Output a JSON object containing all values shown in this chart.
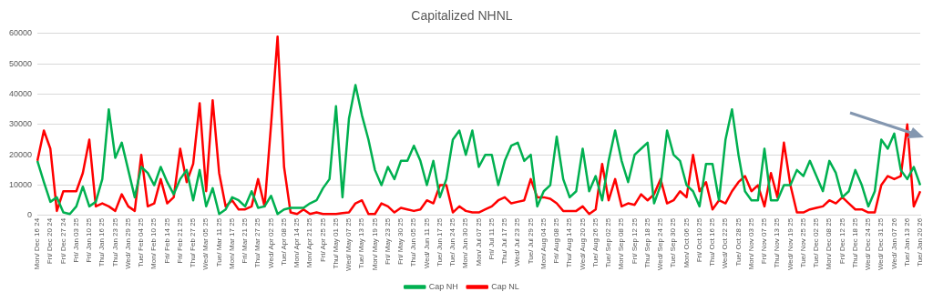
{
  "chart_data": {
    "type": "line",
    "title": "Capitalized NHNL",
    "categories": [
      "Mon/ Dec 16 24",
      null,
      "Fri/ Dec 20 24",
      null,
      "Fri/ Dec 27 24",
      null,
      "Fri/ Jan 03 25",
      null,
      "Fri/ Jan 10 25",
      null,
      "Thu/ Jan 16 25",
      null,
      "Thu/ Jan 23 25",
      null,
      "Wed/ Jan 29 25",
      null,
      "Tue/ Feb 04 25",
      null,
      "Mon/ Feb 10 25",
      null,
      "Fri/ Feb 14 25",
      null,
      "Fri/ Feb 21 25",
      null,
      "Thu/ Feb 27 25",
      null,
      "Wed/ Mar 05 25",
      null,
      "Tue/ Mar 11 25",
      null,
      "Mon/ Mar 17 25",
      null,
      "Fri/ Mar 21 25",
      null,
      "Thu/ Mar 27 25",
      null,
      "Wed/ Apr 02 25",
      null,
      "Tue/ Apr 08 25",
      null,
      "Mon/ Apr 14 25",
      null,
      "Mon/ Apr 21 25",
      null,
      "Fri/ Apr 25 25",
      null,
      "Thu/ May 01 25",
      null,
      "Wed/ May 07 25",
      null,
      "Tue/ May 13 25",
      null,
      "Mon/ May 19 25",
      null,
      "Fri/ May 23 25",
      null,
      "Fri/ May 30 25",
      null,
      "Thu/ Jun 05 25",
      null,
      "Wed/ Jun 11 25",
      null,
      "Tue/ Jun 17 25",
      null,
      "Tue/ Jun 24 25",
      null,
      "Mon/ Jun 30 25",
      null,
      "Mon/ Jul 07 25",
      null,
      "Fri/ Jul 11 25",
      null,
      "Thu/ Jul 17 25",
      null,
      "Wed/ Jul 23 25",
      null,
      "Tue/ Jul 29 25",
      null,
      "Mon/ Aug 04 25",
      null,
      "Fri/ Aug 08 25",
      null,
      "Thu/ Aug 14 25",
      null,
      "Wed/ Aug 20 25",
      null,
      "Tue/ Aug 26 25",
      null,
      "Tue/ Sep 02 25",
      null,
      "Mon/ Sep 08 25",
      null,
      "Fri/ Sep 12 25",
      null,
      "Thu/ Sep 18 25",
      null,
      "Wed/ Sep 24 25",
      null,
      "Tue/ Sep 30 25",
      null,
      "Mon/ Oct 06 25",
      null,
      "Fri/ Oct 10 25",
      null,
      "Thu/ Oct 16 25",
      null,
      "Wed/ Oct 22 25",
      null,
      "Tue/ Oct 28 25",
      null,
      "Mon/ Nov 03 25",
      null,
      "Fri/ Nov 07 25",
      null,
      "Thu/ Nov 13 25",
      null,
      "Wed/ Nov 19 25",
      null,
      "Tue/ Nov 25 25",
      null,
      "Tue/ Dec 02 25",
      null,
      "Mon/ Dec 08 25",
      null,
      "Fri/ Dec 12 25",
      null,
      "Thu/ Dec 18 25",
      null,
      "Wed/ Dec 24 25",
      null,
      "Wed/ Dec 31 25",
      null,
      "Wed/ Jan 07 26",
      null,
      "Tue/ Jan 13 26",
      null,
      "Tue/ Jan 20 26"
    ],
    "series": [
      {
        "name": "Cap NH",
        "color": "#00b050",
        "values": [
          18000,
          11000,
          4500,
          6000,
          1000,
          500,
          3000,
          9500,
          3000,
          4500,
          12000,
          35000,
          19000,
          24000,
          15000,
          6000,
          16000,
          14000,
          10000,
          16000,
          11000,
          7000,
          12000,
          15000,
          5000,
          15000,
          3000,
          9000,
          500,
          2000,
          6000,
          5000,
          3000,
          8000,
          2500,
          3000,
          6500,
          500,
          2000,
          2500,
          2500,
          2500,
          4000,
          5000,
          9000,
          12000,
          36000,
          6000,
          32000,
          43000,
          33000,
          25000,
          15000,
          10000,
          16000,
          12000,
          18000,
          18000,
          23000,
          18000,
          10000,
          18000,
          6000,
          12000,
          25000,
          28000,
          20000,
          28000,
          16000,
          20000,
          20000,
          10000,
          18000,
          23000,
          24000,
          18000,
          20000,
          3000,
          8000,
          10000,
          26000,
          12000,
          6000,
          8000,
          22000,
          8000,
          13000,
          5000,
          18000,
          28000,
          18000,
          11000,
          20000,
          22000,
          24000,
          4000,
          10000,
          28000,
          20000,
          18000,
          10000,
          8000,
          3000,
          17000,
          17000,
          5000,
          25000,
          35000,
          20000,
          8000,
          5000,
          5000,
          22000,
          5000,
          5000,
          10000,
          10000,
          15000,
          13000,
          18000,
          13000,
          8000,
          18000,
          14000,
          6000,
          8000,
          15000,
          10000,
          3000,
          8000,
          25000,
          22000,
          27000,
          15000,
          12000,
          16000,
          10000
        ]
      },
      {
        "name": "Cap NL",
        "color": "#ff0000",
        "values": [
          18000,
          28000,
          22000,
          1500,
          8000,
          8000,
          8000,
          14000,
          25000,
          3000,
          4000,
          3000,
          1500,
          7000,
          3000,
          1500,
          20000,
          3000,
          4000,
          12000,
          4000,
          6000,
          22000,
          11000,
          17000,
          37000,
          8000,
          38000,
          14000,
          3000,
          5000,
          2000,
          2000,
          3000,
          12000,
          3000,
          30000,
          59000,
          16000,
          1000,
          500,
          2000,
          500,
          1000,
          500,
          500,
          500,
          800,
          1000,
          4000,
          5000,
          500,
          500,
          4000,
          3000,
          1000,
          2500,
          2000,
          1500,
          2000,
          5000,
          4000,
          10000,
          10000,
          1000,
          3000,
          1500,
          1000,
          1000,
          2000,
          3000,
          5000,
          6000,
          4000,
          4500,
          5000,
          12000,
          6000,
          6000,
          5500,
          4000,
          1500,
          1500,
          1500,
          3000,
          500,
          2000,
          17000,
          5000,
          12000,
          3000,
          4000,
          3500,
          7000,
          5000,
          7000,
          12000,
          4000,
          5000,
          8000,
          6000,
          20000,
          8000,
          11000,
          2000,
          5000,
          4000,
          8000,
          11000,
          13000,
          8000,
          10000,
          3000,
          14000,
          6000,
          24000,
          10000,
          1000,
          1000,
          2000,
          2500,
          3000,
          5000,
          4000,
          6000,
          4000,
          2000,
          2000,
          1000,
          1000,
          10000,
          13000,
          12000,
          13000,
          30000,
          3000,
          8000
        ]
      }
    ],
    "ylim": [
      0,
      60000
    ],
    "yticks": [
      0,
      10000,
      20000,
      30000,
      40000,
      50000,
      60000
    ],
    "grid": "y",
    "legend": "bottom",
    "marker": "none",
    "line_style": "solid"
  }
}
